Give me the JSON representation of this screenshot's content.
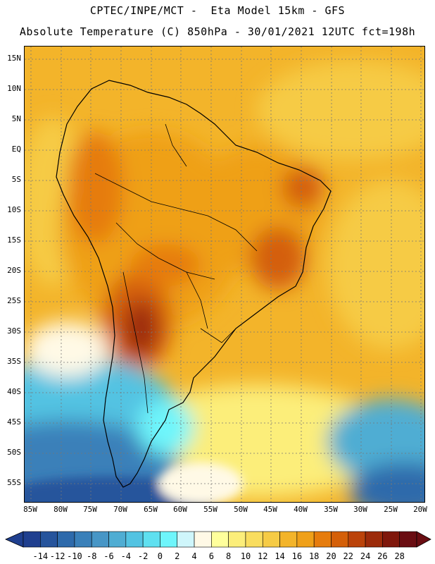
{
  "header": {
    "line1": "CPTEC/INPE/MCT -  Eta Model 15km - GFS",
    "line2": "Absolute Temperature (C) 850hPa - 30/01/2021 12UTC fct=198h"
  },
  "axes": {
    "lat_labels": [
      "15N",
      "10N",
      "5N",
      "EQ",
      "5S",
      "10S",
      "15S",
      "20S",
      "25S",
      "30S",
      "35S",
      "40S",
      "45S",
      "50S",
      "55S"
    ],
    "lon_labels": [
      "85W",
      "80W",
      "75W",
      "70W",
      "65W",
      "60W",
      "55W",
      "50W",
      "45W",
      "40W",
      "35W",
      "30W",
      "25W",
      "20W"
    ]
  },
  "colorbar": {
    "labels": [
      "-14",
      "-12",
      "-10",
      "-8",
      "-6",
      "-4",
      "-2",
      "0",
      "2",
      "4",
      "6",
      "8",
      "10",
      "12",
      "14",
      "16",
      "18",
      "20",
      "22",
      "24",
      "26",
      "28"
    ],
    "colors": [
      "#1f3f8f",
      "#26549c",
      "#2e6aab",
      "#3a80b9",
      "#4796c6",
      "#4fadd3",
      "#53c3e2",
      "#5fe0f0",
      "#6ef5fb",
      "#cff6fb",
      "#fff9e6",
      "#ffff9c",
      "#fcee7a",
      "#f9dd5e",
      "#f6cb45",
      "#f3b42a",
      "#efa019",
      "#e67c0d",
      "#d45f08",
      "#bb430a",
      "#9c2b0a",
      "#7f170b",
      "#6a0d12"
    ]
  }
}
